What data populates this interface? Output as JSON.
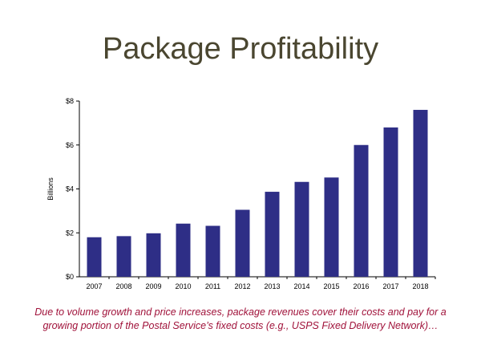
{
  "title": "Package Profitability",
  "caption": "Due to volume growth and price increases, package revenues cover their costs and pay for a growing portion of the Postal Service’s fixed costs (e.g., USPS Fixed Delivery Network)…",
  "colors": {
    "bar": "#2e2e86",
    "title": "#4a4630",
    "caption": "#a0123a"
  },
  "chart_data": {
    "type": "bar",
    "categories": [
      "2007",
      "2008",
      "2009",
      "2010",
      "2011",
      "2012",
      "2013",
      "2014",
      "2015",
      "2016",
      "2017",
      "2018"
    ],
    "values": [
      1.8,
      1.85,
      1.98,
      2.42,
      2.32,
      3.05,
      3.87,
      4.32,
      4.52,
      6.0,
      6.8,
      7.6
    ],
    "ylabel": "Billions",
    "ylim": [
      0,
      8
    ],
    "yticks": [
      0,
      2,
      4,
      6,
      8
    ],
    "ytick_labels": [
      "$0",
      "$2",
      "$4",
      "$6",
      "$8"
    ],
    "grid": false
  }
}
